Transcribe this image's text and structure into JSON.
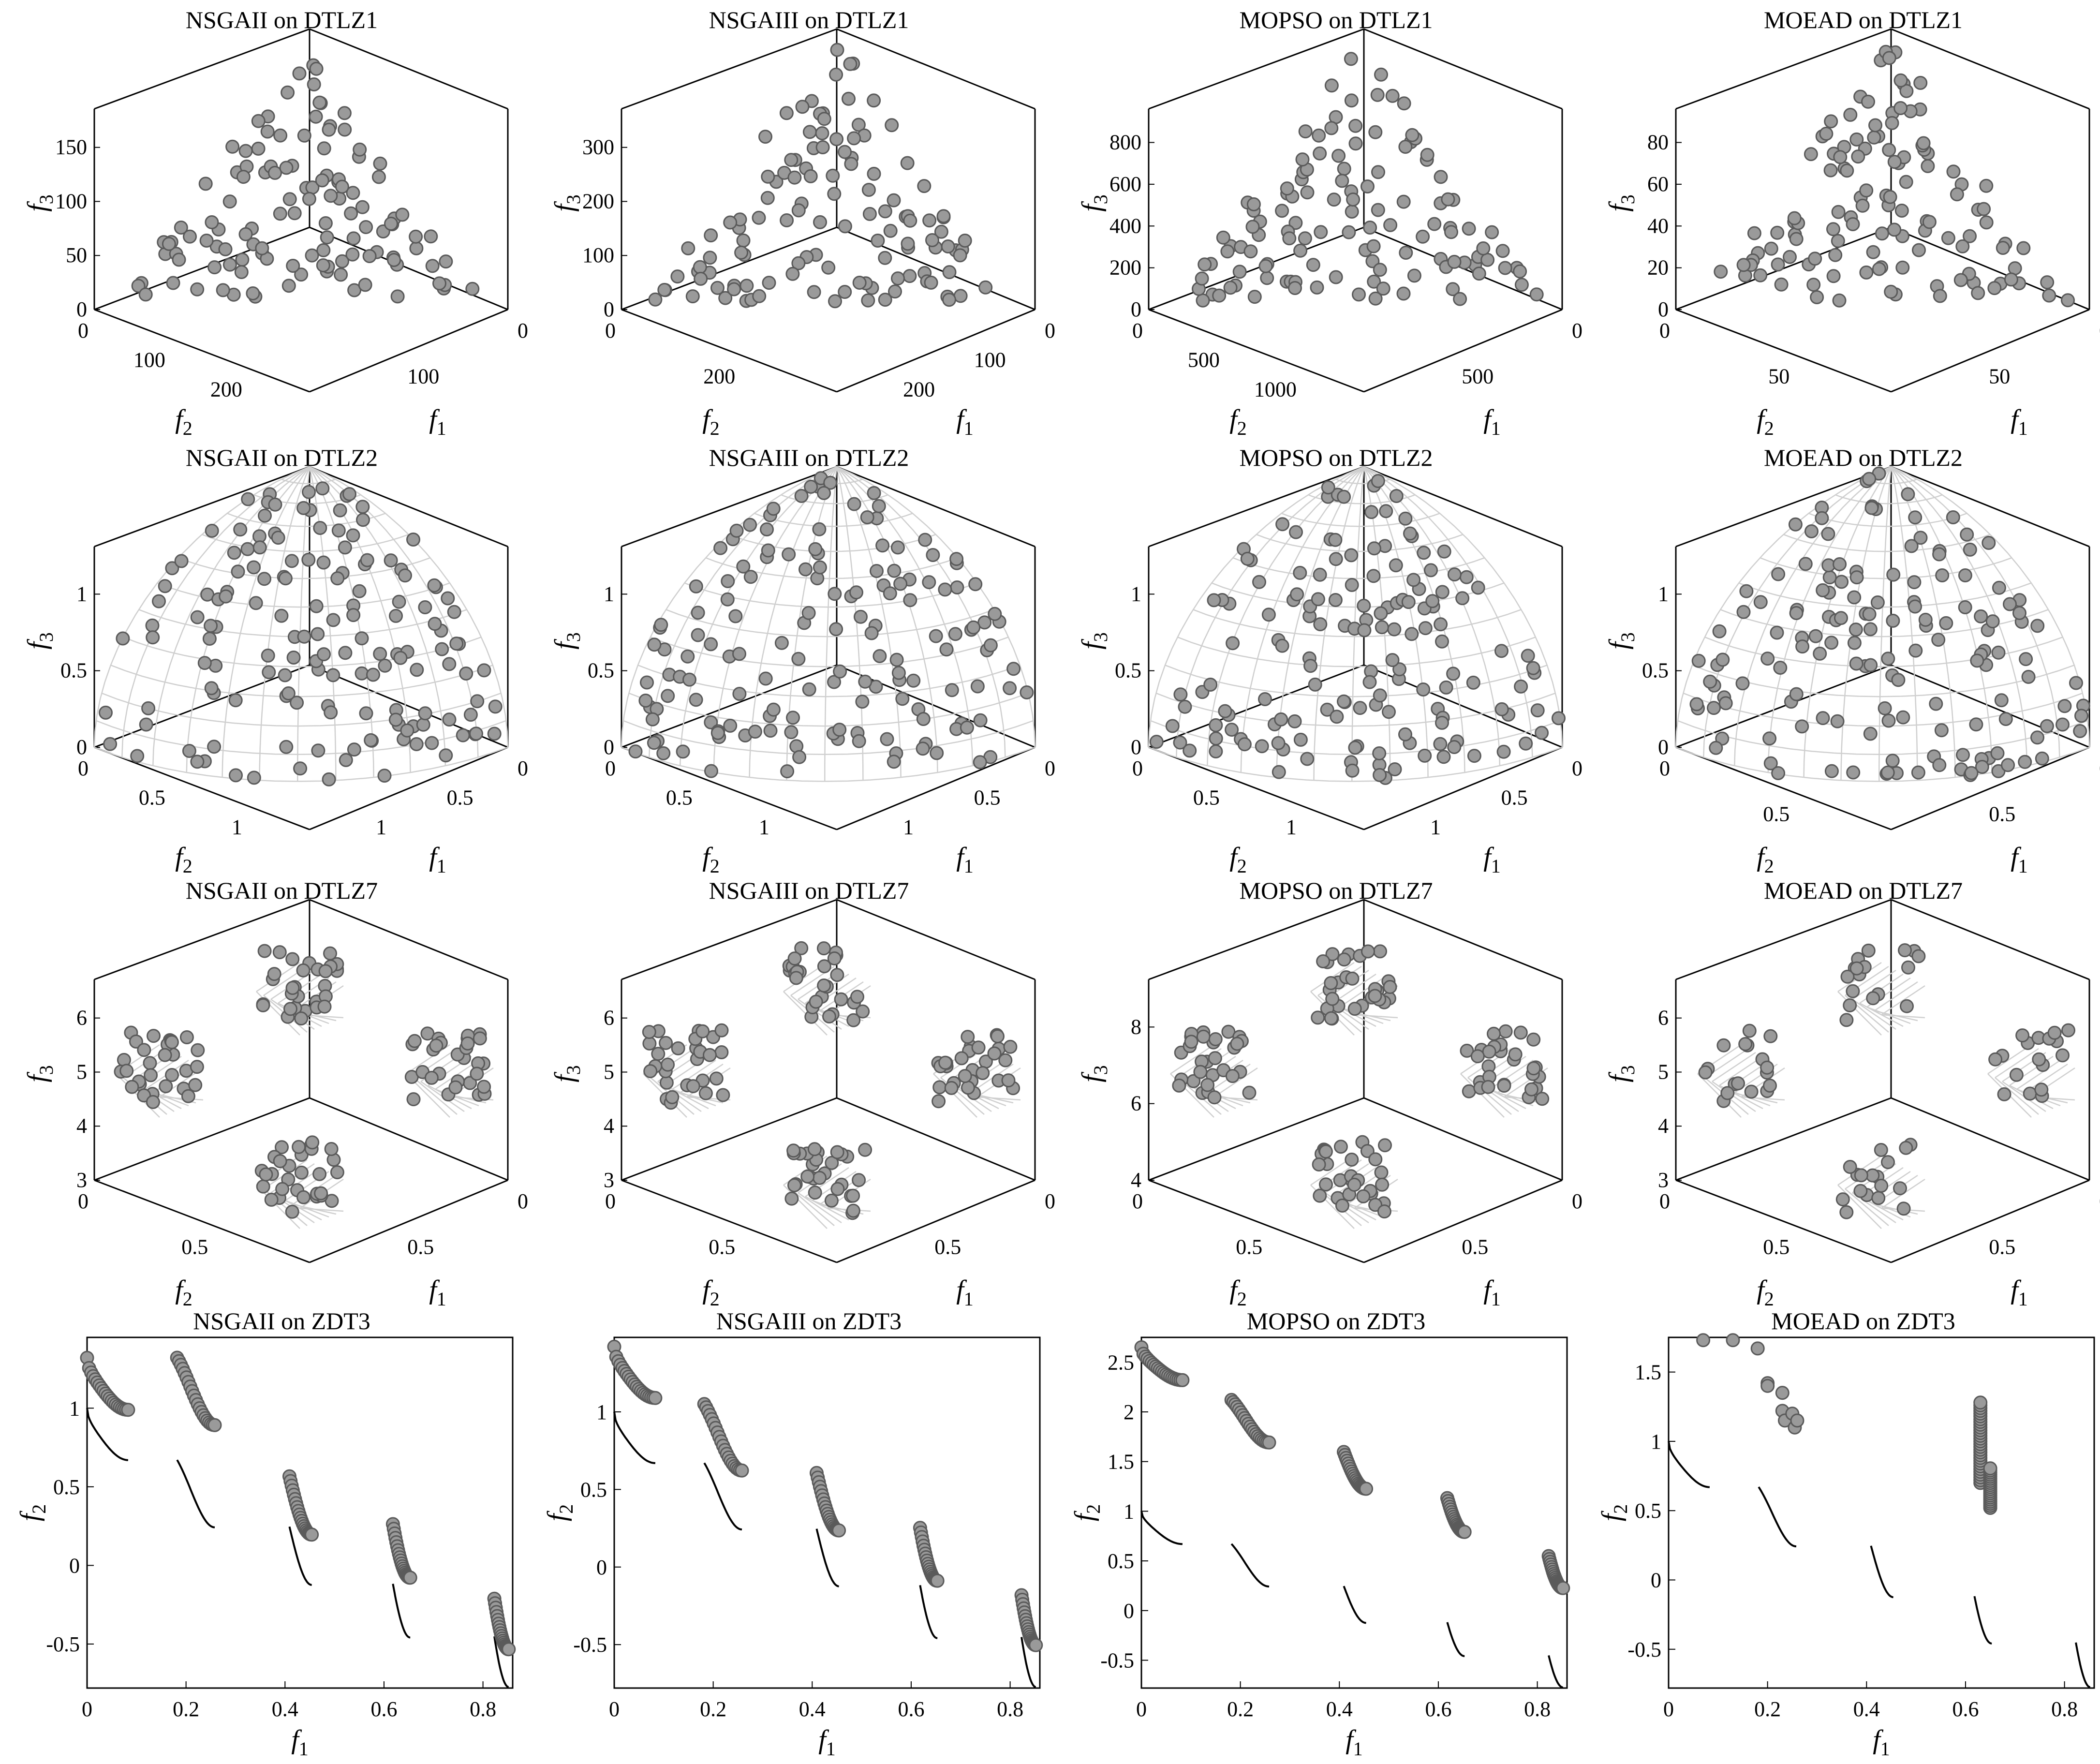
{
  "chart_data": [
    {
      "type": "scatter",
      "problem": "DTLZ1",
      "algorithm": "NSGAII",
      "title": "NSGAII on DTLZ1",
      "kind": "3d",
      "front": "none",
      "zlabel": "f3",
      "xlabel": "f1",
      "ylabel": "f2",
      "z_ticks": [
        "0",
        "50",
        "100",
        "150"
      ],
      "f1_ticks": [
        "0",
        "100"
      ],
      "f2_ticks": [
        "0",
        "100",
        "200"
      ],
      "samples": 120,
      "seed": 11,
      "note_scatter": "simplex-scattered points in [0,~250]"
    },
    {
      "type": "scatter",
      "problem": "DTLZ1",
      "algorithm": "NSGAIII",
      "title": "NSGAIII on DTLZ1",
      "kind": "3d",
      "front": "none",
      "zlabel": "f3",
      "xlabel": "f1",
      "ylabel": "f2",
      "z_ticks": [
        "0",
        "100",
        "200",
        "300"
      ],
      "f1_ticks": [
        "0",
        "100",
        "200"
      ],
      "f2_ticks": [
        "0",
        "200"
      ],
      "samples": 120,
      "seed": 12
    },
    {
      "type": "scatter",
      "problem": "DTLZ1",
      "algorithm": "MOPSO",
      "title": "MOPSO on DTLZ1",
      "kind": "3d",
      "front": "none",
      "zlabel": "f3",
      "xlabel": "f1",
      "ylabel": "f2",
      "z_ticks": [
        "0",
        "200",
        "400",
        "600",
        "800"
      ],
      "f1_ticks": [
        "0",
        "500"
      ],
      "f2_ticks": [
        "0",
        "500",
        "1000"
      ],
      "samples": 120,
      "seed": 13
    },
    {
      "type": "scatter",
      "problem": "DTLZ1",
      "algorithm": "MOEAD",
      "title": "MOEAD on DTLZ1",
      "kind": "3d",
      "front": "none",
      "zlabel": "f3",
      "xlabel": "f1",
      "ylabel": "f2",
      "z_ticks": [
        "0",
        "20",
        "40",
        "60",
        "80"
      ],
      "f1_ticks": [
        "0",
        "50"
      ],
      "f2_ticks": [
        "0",
        "50"
      ],
      "samples": 120,
      "seed": 14
    },
    {
      "type": "scatter",
      "problem": "DTLZ2",
      "algorithm": "NSGAII",
      "title": "NSGAII on DTLZ2",
      "kind": "3d",
      "front": "sphere",
      "zlabel": "f3",
      "xlabel": "f1",
      "ylabel": "f2",
      "z_ticks": [
        "0",
        "0.5",
        "1"
      ],
      "f1_ticks": [
        "0",
        "0.5",
        "1"
      ],
      "f2_ticks": [
        "0",
        "0.5",
        "1"
      ],
      "samples": 150,
      "seed": 21
    },
    {
      "type": "scatter",
      "problem": "DTLZ2",
      "algorithm": "NSGAIII",
      "title": "NSGAIII on DTLZ2",
      "kind": "3d",
      "front": "sphere",
      "zlabel": "f3",
      "xlabel": "f1",
      "ylabel": "f2",
      "z_ticks": [
        "0",
        "0.5",
        "1"
      ],
      "f1_ticks": [
        "0",
        "0.5",
        "1"
      ],
      "f2_ticks": [
        "0",
        "0.5",
        "1"
      ],
      "samples": 150,
      "seed": 22
    },
    {
      "type": "scatter",
      "problem": "DTLZ2",
      "algorithm": "MOPSO",
      "title": "MOPSO on DTLZ2",
      "kind": "3d",
      "front": "sphere",
      "zlabel": "f3",
      "xlabel": "f1",
      "ylabel": "f2",
      "z_ticks": [
        "0",
        "0.5",
        "1"
      ],
      "f1_ticks": [
        "0",
        "0.5",
        "1"
      ],
      "f2_ticks": [
        "0",
        "0.5",
        "1"
      ],
      "samples": 150,
      "seed": 23
    },
    {
      "type": "scatter",
      "problem": "DTLZ2",
      "algorithm": "MOEAD",
      "title": "MOEAD on DTLZ2",
      "kind": "3d",
      "front": "sphere",
      "zlabel": "f3",
      "xlabel": "f1",
      "ylabel": "f2",
      "z_ticks": [
        "0",
        "0.5",
        "1"
      ],
      "f1_ticks": [
        "0",
        "0.5"
      ],
      "f2_ticks": [
        "0",
        "0.5"
      ],
      "samples": 150,
      "seed": 24
    },
    {
      "type": "scatter",
      "problem": "DTLZ7",
      "algorithm": "NSGAII",
      "title": "NSGAII on DTLZ7",
      "kind": "3d",
      "front": "patches",
      "zlabel": "f3",
      "xlabel": "f1",
      "ylabel": "f2",
      "z_ticks": [
        "3",
        "4",
        "5",
        "6"
      ],
      "f1_ticks": [
        "0",
        "0.5"
      ],
      "f2_ticks": [
        "0",
        "0.5"
      ],
      "samples": 120,
      "seed": 31
    },
    {
      "type": "scatter",
      "problem": "DTLZ7",
      "algorithm": "NSGAIII",
      "title": "NSGAIII on DTLZ7",
      "kind": "3d",
      "front": "patches",
      "zlabel": "f3",
      "xlabel": "f1",
      "ylabel": "f2",
      "z_ticks": [
        "3",
        "4",
        "5",
        "6"
      ],
      "f1_ticks": [
        "0",
        "0.5"
      ],
      "f2_ticks": [
        "0",
        "0.5"
      ],
      "samples": 120,
      "seed": 32
    },
    {
      "type": "scatter",
      "problem": "DTLZ7",
      "algorithm": "MOPSO",
      "title": "MOPSO on DTLZ7",
      "kind": "3d",
      "front": "patches",
      "zlabel": "f3",
      "xlabel": "f1",
      "ylabel": "f2",
      "z_ticks": [
        "4",
        "6",
        "8"
      ],
      "f1_ticks": [
        "0",
        "0.5"
      ],
      "f2_ticks": [
        "0",
        "0.5"
      ],
      "samples": 120,
      "seed": 33
    },
    {
      "type": "scatter",
      "problem": "DTLZ7",
      "algorithm": "MOEAD",
      "title": "MOEAD on DTLZ7",
      "kind": "3d",
      "front": "patches",
      "zlabel": "f3",
      "xlabel": "f1",
      "ylabel": "f2",
      "z_ticks": [
        "3",
        "4",
        "5",
        "6"
      ],
      "f1_ticks": [
        "0",
        "0.5"
      ],
      "f2_ticks": [
        "0",
        "0.5"
      ],
      "samples": 70,
      "seed": 34
    },
    {
      "type": "scatter",
      "problem": "ZDT3",
      "algorithm": "NSGAII",
      "title": "NSGAII on ZDT3",
      "kind": "2d",
      "xlabel": "f1",
      "ylabel": "f2",
      "xlim": [
        0,
        0.86
      ],
      "ylim": [
        -0.78,
        1.45
      ],
      "x_ticks": [
        0,
        0.2,
        0.4,
        0.6,
        0.8
      ],
      "y_ticks": [
        -0.5,
        0,
        0.5,
        1
      ],
      "y_tick_labels": [
        "-0.5",
        "0",
        "0.5",
        "1"
      ],
      "x_tick_labels": [
        "0",
        "0.2",
        "0.4",
        "0.6",
        "0.8"
      ],
      "offsets": [
        0.32,
        0.65,
        0.32,
        0.38,
        0.24
      ],
      "samples": 110
    },
    {
      "type": "scatter",
      "problem": "ZDT3",
      "algorithm": "NSGAIII",
      "title": "NSGAIII on ZDT3",
      "kind": "2d",
      "xlabel": "f1",
      "ylabel": "f2",
      "xlim": [
        0,
        0.86
      ],
      "ylim": [
        -0.78,
        1.48
      ],
      "x_ticks": [
        0,
        0.2,
        0.4,
        0.6,
        0.8
      ],
      "y_ticks": [
        -0.5,
        0,
        0.5,
        1
      ],
      "y_tick_labels": [
        "-0.5",
        "0",
        "0.5",
        "1"
      ],
      "x_tick_labels": [
        "0",
        "0.2",
        "0.4",
        "0.6",
        "0.8"
      ],
      "offsets": [
        0.42,
        0.38,
        0.36,
        0.37,
        0.27
      ],
      "samples": 110
    },
    {
      "type": "scatter",
      "problem": "ZDT3",
      "algorithm": "MOPSO",
      "title": "MOPSO on ZDT3",
      "kind": "2d",
      "xlabel": "f1",
      "ylabel": "f2",
      "xlim": [
        0,
        0.86
      ],
      "ylim": [
        -0.78,
        2.75
      ],
      "x_ticks": [
        0,
        0.2,
        0.4,
        0.6,
        0.8
      ],
      "y_ticks": [
        -0.5,
        0,
        0.5,
        1,
        1.5,
        2,
        2.5
      ],
      "y_tick_labels": [
        "-0.5",
        "0",
        "0.5",
        "1",
        "1.5",
        "2",
        "2.5"
      ],
      "x_tick_labels": [
        "0",
        "0.2",
        "0.4",
        "0.6",
        "0.8"
      ],
      "offsets": [
        1.65,
        1.45,
        1.35,
        1.25,
        1.0
      ],
      "samples": 110
    },
    {
      "type": "scatter",
      "problem": "ZDT3",
      "algorithm": "MOEAD",
      "title": "MOEAD on ZDT3",
      "kind": "2d",
      "xlabel": "f1",
      "ylabel": "f2",
      "xlim": [
        0,
        0.86
      ],
      "ylim": [
        -0.78,
        1.75
      ],
      "x_ticks": [
        0,
        0.2,
        0.4,
        0.6,
        0.8
      ],
      "y_ticks": [
        -0.5,
        0,
        0.5,
        1,
        1.5
      ],
      "y_tick_labels": [
        "-0.5",
        "0",
        "0.5",
        "1",
        "1.5"
      ],
      "x_tick_labels": [
        "0",
        "0.2",
        "0.4",
        "0.6",
        "0.8"
      ],
      "clusters": "moead",
      "samples": 80
    }
  ],
  "colors": {
    "marker_fill": "#9a9a9a",
    "marker_edge": "#5a5a5a",
    "grid": "#cfcfcf",
    "axis": "#000000",
    "front": "#000000"
  }
}
